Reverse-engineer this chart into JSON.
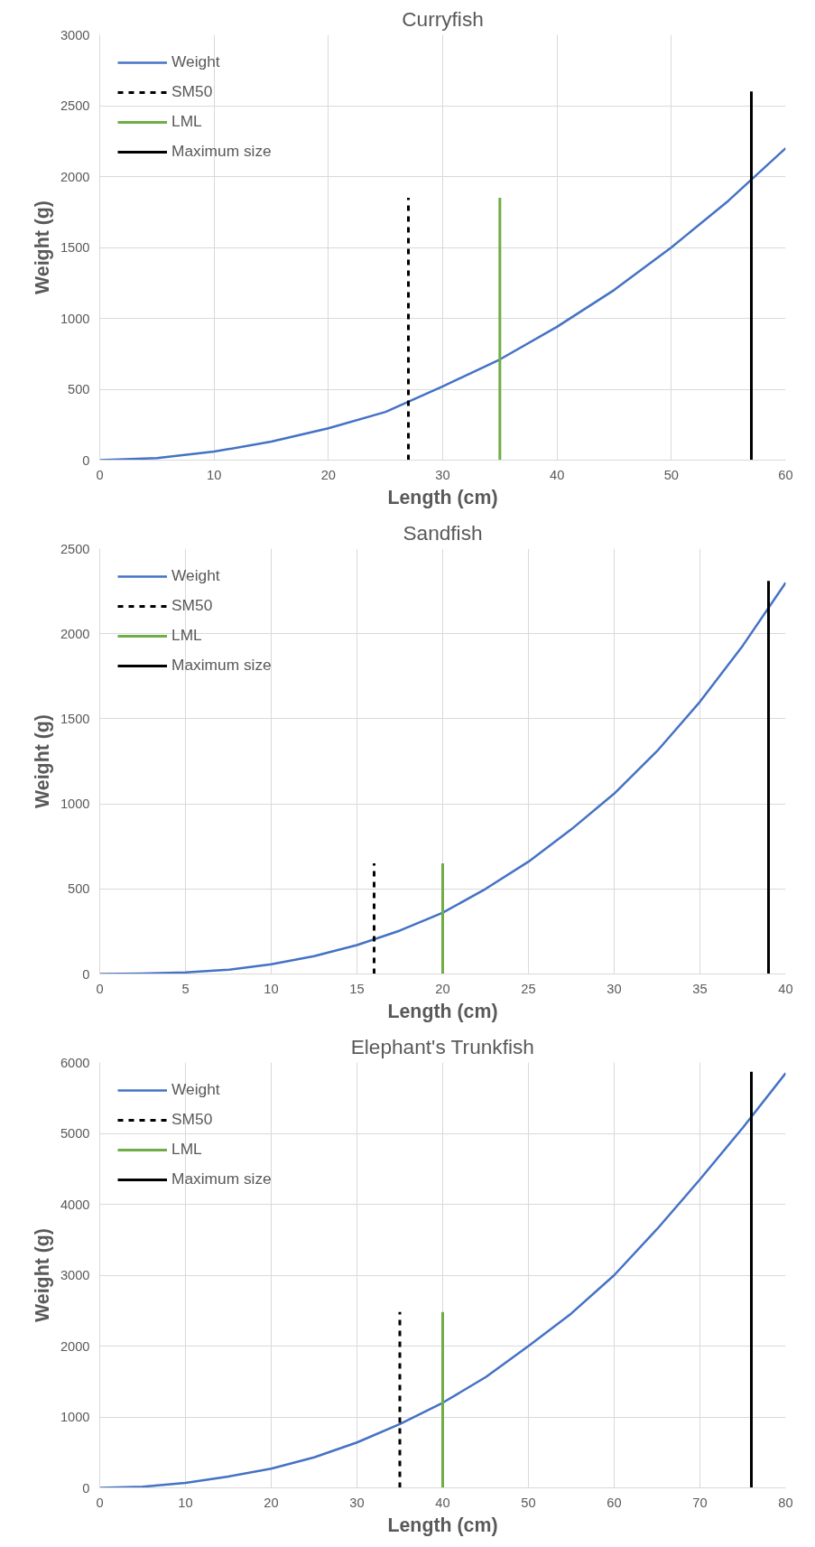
{
  "chart_data": [
    {
      "type": "line",
      "title": "Curryfish",
      "xlabel": "Length (cm)",
      "ylabel": "Weight (g)",
      "xlim": [
        0,
        60
      ],
      "ylim": [
        0,
        3000
      ],
      "xticks": [
        0,
        10,
        20,
        30,
        40,
        50,
        60
      ],
      "yticks": [
        0,
        500,
        1000,
        1500,
        2000,
        2500,
        3000
      ],
      "grid": true,
      "legend": "top left",
      "series": [
        {
          "name": "Weight",
          "color": "#4472c4",
          "line_style": "solid",
          "x": [
            0,
            5,
            10,
            15,
            20,
            25,
            30,
            35,
            40,
            45,
            50,
            55,
            60
          ],
          "values": [
            0,
            15,
            60,
            130,
            225,
            340,
            520,
            710,
            940,
            1200,
            1500,
            1830,
            2200
          ]
        },
        {
          "name": "SM50",
          "color": "#000000",
          "line_style": "dashed",
          "x": [
            27,
            27
          ],
          "values": [
            0,
            1850
          ]
        },
        {
          "name": "LML",
          "color": "#70ad47",
          "line_style": "solid",
          "x": [
            35,
            35
          ],
          "values": [
            0,
            1850
          ]
        },
        {
          "name": "Maximum size",
          "color": "#000000",
          "line_style": "solid",
          "x": [
            57,
            57
          ],
          "values": [
            0,
            2600
          ]
        }
      ]
    },
    {
      "type": "line",
      "title": "Sandfish",
      "xlabel": "Length (cm)",
      "ylabel": "Weight (g)",
      "xlim": [
        0,
        40
      ],
      "ylim": [
        0,
        2500
      ],
      "xticks": [
        0,
        5,
        10,
        15,
        20,
        25,
        30,
        35,
        40
      ],
      "yticks": [
        0,
        500,
        1000,
        1500,
        2000,
        2500
      ],
      "grid": true,
      "legend": "top left",
      "series": [
        {
          "name": "Weight",
          "color": "#4472c4",
          "line_style": "solid",
          "x": [
            0,
            2.5,
            5,
            7.5,
            10,
            12.5,
            15,
            17.5,
            20,
            22.5,
            25,
            27.5,
            30,
            32.5,
            35,
            37.5,
            40
          ],
          "values": [
            0,
            2,
            9,
            25,
            57,
            105,
            170,
            255,
            360,
            500,
            660,
            850,
            1060,
            1310,
            1600,
            1930,
            2300
          ]
        },
        {
          "name": "SM50",
          "color": "#000000",
          "line_style": "dashed",
          "x": [
            16,
            16
          ],
          "values": [
            0,
            650
          ]
        },
        {
          "name": "LML",
          "color": "#70ad47",
          "line_style": "solid",
          "x": [
            20,
            20
          ],
          "values": [
            0,
            650
          ]
        },
        {
          "name": "Maximum size",
          "color": "#000000",
          "line_style": "solid",
          "x": [
            39,
            39
          ],
          "values": [
            0,
            2310
          ]
        }
      ]
    },
    {
      "type": "line",
      "title": "Elephant's Trunkfish",
      "xlabel": "Length (cm)",
      "ylabel": "Weight (g)",
      "xlim": [
        0,
        80
      ],
      "ylim": [
        0,
        6000
      ],
      "xticks": [
        0,
        10,
        20,
        30,
        40,
        50,
        60,
        70,
        80
      ],
      "yticks": [
        0,
        1000,
        2000,
        3000,
        4000,
        5000,
        6000
      ],
      "grid": true,
      "legend": "top left",
      "series": [
        {
          "name": "Weight",
          "color": "#4472c4",
          "line_style": "solid",
          "x": [
            0,
            5,
            10,
            15,
            20,
            25,
            30,
            35,
            40,
            45,
            50,
            55,
            60,
            65,
            70,
            75,
            80
          ],
          "values": [
            0,
            15,
            70,
            160,
            270,
            430,
            640,
            900,
            1200,
            1560,
            2000,
            2460,
            3000,
            3650,
            4350,
            5080,
            5850
          ]
        },
        {
          "name": "SM50",
          "color": "#000000",
          "line_style": "dashed",
          "x": [
            35,
            35
          ],
          "values": [
            0,
            2480
          ]
        },
        {
          "name": "LML",
          "color": "#70ad47",
          "line_style": "solid",
          "x": [
            40,
            40
          ],
          "values": [
            0,
            2480
          ]
        },
        {
          "name": "Maximum size",
          "color": "#000000",
          "line_style": "solid",
          "x": [
            76,
            76
          ],
          "values": [
            0,
            5870
          ]
        }
      ]
    }
  ]
}
